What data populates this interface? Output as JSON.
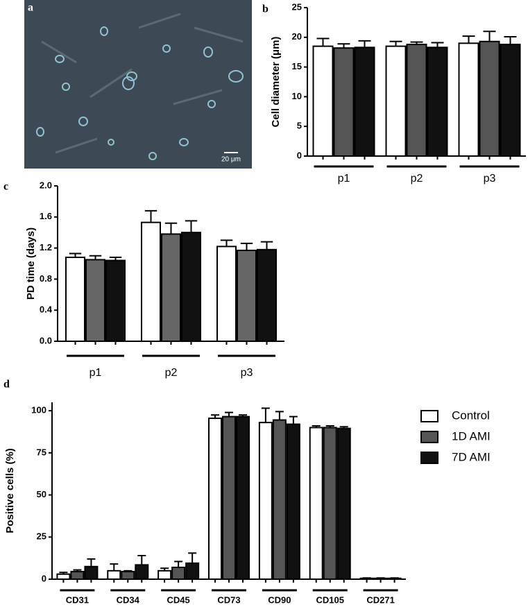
{
  "image_panel": {
    "label": "a",
    "scale_bar": "20 μm"
  },
  "chart_data": [
    {
      "type": "bar",
      "label": "b",
      "ylabel": "Cell diameter (μm)",
      "categories": [
        "p1",
        "p2",
        "p3"
      ],
      "series": [
        {
          "color": "#ffffff",
          "values": [
            18.5,
            18.5,
            19.0
          ],
          "errors": [
            1.3,
            0.8,
            1.2
          ]
        },
        {
          "color": "#555555",
          "values": [
            18.2,
            18.8,
            19.3
          ],
          "errors": [
            0.7,
            0.4,
            1.7
          ]
        },
        {
          "color": "#111111",
          "values": [
            18.3,
            18.3,
            18.8
          ],
          "errors": [
            1.1,
            0.8,
            1.3
          ]
        }
      ],
      "ylim": [
        0,
        25
      ],
      "yticks": [
        0,
        5,
        10,
        15,
        20,
        25
      ]
    },
    {
      "type": "bar",
      "label": "c",
      "ylabel": "PD time (days)",
      "categories": [
        "p1",
        "p2",
        "p3"
      ],
      "series": [
        {
          "color": "#ffffff",
          "values": [
            1.08,
            1.53,
            1.22
          ],
          "errors": [
            0.05,
            0.15,
            0.08
          ]
        },
        {
          "color": "#666666",
          "values": [
            1.05,
            1.38,
            1.17
          ],
          "errors": [
            0.05,
            0.14,
            0.09
          ]
        },
        {
          "color": "#111111",
          "values": [
            1.04,
            1.4,
            1.18
          ],
          "errors": [
            0.04,
            0.15,
            0.1
          ]
        }
      ],
      "ylim": [
        0,
        2.0
      ],
      "yticks": [
        {
          "value": 0,
          "label": "0.0"
        },
        0.4,
        0.8,
        1.2,
        1.6,
        {
          "value": 2.0,
          "label": "2.0"
        }
      ]
    },
    {
      "type": "bar",
      "label": "d",
      "ylabel": "Positive cells (%)",
      "categories": [
        "CD31",
        "CD34",
        "CD45",
        "CD73",
        "CD90",
        "CD105",
        "CD271"
      ],
      "series": [
        {
          "name": "Control",
          "color": "#ffffff",
          "values": [
            3,
            5,
            5,
            95.5,
            93,
            90,
            0.5
          ],
          "errors": [
            1,
            4,
            1.5,
            2,
            8.5,
            1,
            0.2
          ]
        },
        {
          "name": "1D AMI",
          "color": "#555555",
          "values": [
            4.5,
            4.5,
            7,
            96.5,
            94.5,
            90,
            0.5
          ],
          "errors": [
            1,
            0.5,
            3.5,
            2.5,
            5,
            1,
            0.2
          ]
        },
        {
          "name": "7D AMI",
          "color": "#111111",
          "values": [
            7.5,
            8.5,
            9.5,
            96.5,
            92,
            89.5,
            0.5
          ],
          "errors": [
            4.5,
            5.5,
            6,
            1,
            4.5,
            1,
            0.2
          ]
        }
      ],
      "ylim": [
        0,
        105
      ],
      "yticks": [
        0,
        25,
        50,
        75,
        100
      ],
      "legend": "right"
    }
  ]
}
